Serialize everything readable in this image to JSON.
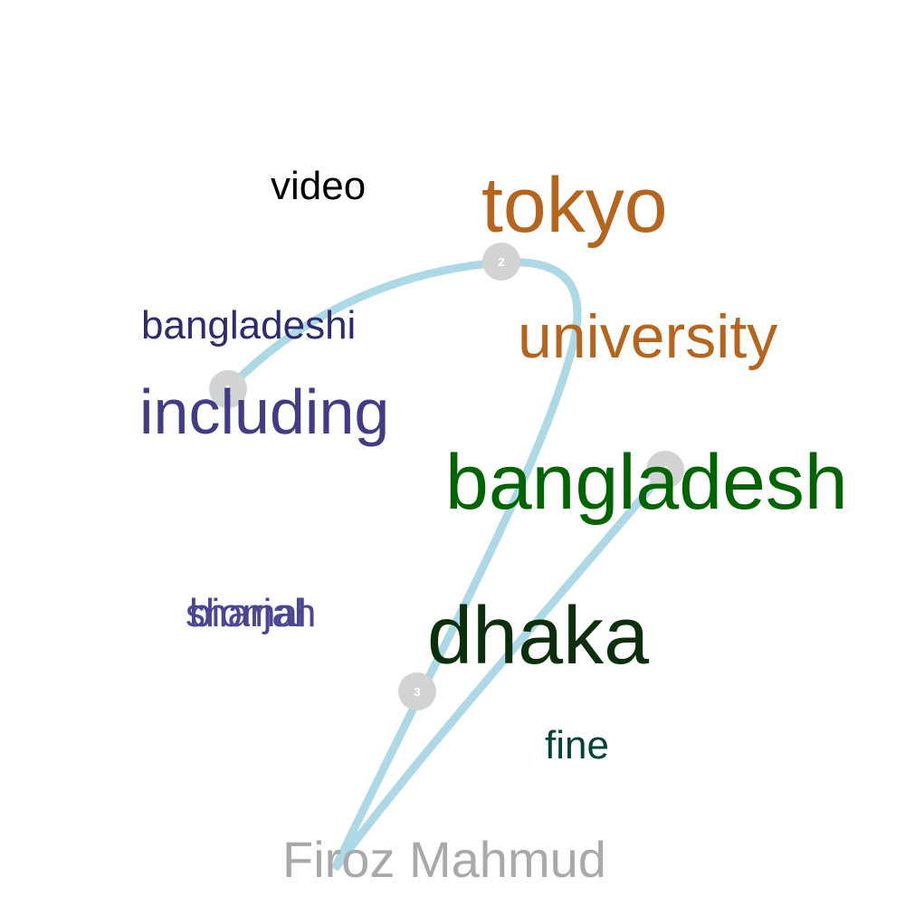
{
  "colors": {
    "path": "#add8e6",
    "marker": "#d3d3d3",
    "marker_text": "#ffffff"
  },
  "words": [
    {
      "text": "video",
      "color": "#000000"
    },
    {
      "text": "tokyo",
      "color": "#b5651d"
    },
    {
      "text": "bangladeshi",
      "color": "#2e2a6e"
    },
    {
      "text": "university",
      "color": "#b5651d"
    },
    {
      "text": "including",
      "color": "#423b86"
    },
    {
      "text": "bangladesh",
      "color": "#006400"
    },
    {
      "text": "sharjah",
      "color": "#4b4594"
    },
    {
      "text": "biomal",
      "color": "#4b4594"
    },
    {
      "text": "dhaka",
      "color": "#0b2e0b"
    },
    {
      "text": "fine",
      "color": "#004433"
    },
    {
      "text": "Firoz Mahmud",
      "color": "#a9a9a9"
    }
  ],
  "markers": [
    {
      "label": "1"
    },
    {
      "label": "2"
    },
    {
      "label": "3"
    },
    {
      "label": "4"
    }
  ]
}
